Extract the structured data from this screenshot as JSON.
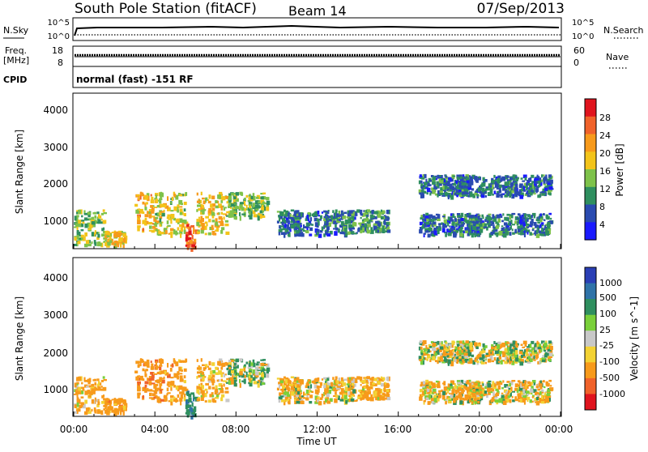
{
  "header": {
    "title": "South Pole Station (fitACF)",
    "beam": "Beam 14",
    "date": "07/Sep/2013"
  },
  "nsky_panel": {
    "left_label": "N.Sky",
    "right_label": "N.Search",
    "left_ticks": [
      "10^5",
      "10^0"
    ],
    "right_ticks": [
      "10^5",
      "10^0"
    ]
  },
  "freq_panel": {
    "left_label": "Freq.",
    "left_unit": "[MHz]",
    "right_label": "Nave",
    "left_ticks": [
      "18",
      "8"
    ],
    "right_ticks": [
      "60",
      "0"
    ]
  },
  "cpid": {
    "label": "CPID",
    "program": "normal (fast) -151 RF"
  },
  "xaxis": {
    "title": "Time UT",
    "ticks": [
      "00:00",
      "04:00",
      "08:00",
      "12:00",
      "16:00",
      "20:00",
      "00:00"
    ]
  },
  "power_panel": {
    "ylabel": "Slant Range [km]",
    "yticks": [
      "1000",
      "2000",
      "3000",
      "4000"
    ],
    "colorbar_label": "Power [dB]",
    "colorbar_ticks": [
      "4",
      "8",
      "12",
      "16",
      "20",
      "24",
      "28"
    ],
    "colors": [
      "#1a1aff",
      "#2a4bb0",
      "#2f8f5f",
      "#7ec24a",
      "#f3c41a",
      "#f79a1b",
      "#f0622a",
      "#e0141e"
    ]
  },
  "velocity_panel": {
    "ylabel": "Slant Range [km]",
    "yticks": [
      "1000",
      "2000",
      "3000",
      "4000"
    ],
    "colorbar_label": "Velocity [m s^-1]",
    "colorbar_ticks": [
      "1000",
      "500",
      "100",
      "25",
      "-25",
      "-100",
      "-500",
      "-1000"
    ],
    "colors": [
      "#2a3fb5",
      "#2f73a8",
      "#2f8f5f",
      "#7ad03a",
      "#c8c8c8",
      "#f3d233",
      "#f79a1b",
      "#f0622a",
      "#e0141e"
    ]
  },
  "chart_data": {
    "type": "heatmap",
    "x_unit": "UT hours",
    "xlim": [
      0,
      24
    ],
    "ylim": [
      180,
      4600
    ],
    "echo_regions": [
      {
        "t_start": 0.0,
        "t_end": 1.5,
        "range_low": 300,
        "range_high": 1300,
        "power_db": 12,
        "velocity": -200
      },
      {
        "t_start": 1.5,
        "t_end": 2.5,
        "range_low": 300,
        "range_high": 700,
        "power_db": 16,
        "velocity": -300
      },
      {
        "t_start": 3.0,
        "t_end": 4.0,
        "range_low": 700,
        "range_high": 1800,
        "power_db": 18,
        "velocity": -400
      },
      {
        "t_start": 4.0,
        "t_end": 5.5,
        "range_low": 600,
        "range_high": 1800,
        "power_db": 14,
        "velocity": -300
      },
      {
        "t_start": 5.5,
        "t_end": 6.0,
        "range_low": 200,
        "range_high": 900,
        "power_db": 24,
        "velocity": 400
      },
      {
        "t_start": 6.0,
        "t_end": 7.5,
        "range_low": 600,
        "range_high": 1800,
        "power_db": 16,
        "velocity": -200
      },
      {
        "t_start": 7.5,
        "t_end": 9.5,
        "range_low": 1100,
        "range_high": 1800,
        "power_db": 12,
        "velocity": 100
      },
      {
        "t_start": 10.0,
        "t_end": 14.0,
        "range_low": 600,
        "range_high": 1300,
        "power_db": 6,
        "velocity": -100
      },
      {
        "t_start": 14.0,
        "t_end": 15.5,
        "range_low": 700,
        "range_high": 1300,
        "power_db": 8,
        "velocity": -200
      },
      {
        "t_start": 17.0,
        "t_end": 23.5,
        "range_low": 1700,
        "range_high": 2300,
        "power_db": 6,
        "velocity": 0
      },
      {
        "t_start": 17.0,
        "t_end": 23.5,
        "range_low": 600,
        "range_high": 1200,
        "power_db": 6,
        "velocity": -100
      }
    ]
  }
}
